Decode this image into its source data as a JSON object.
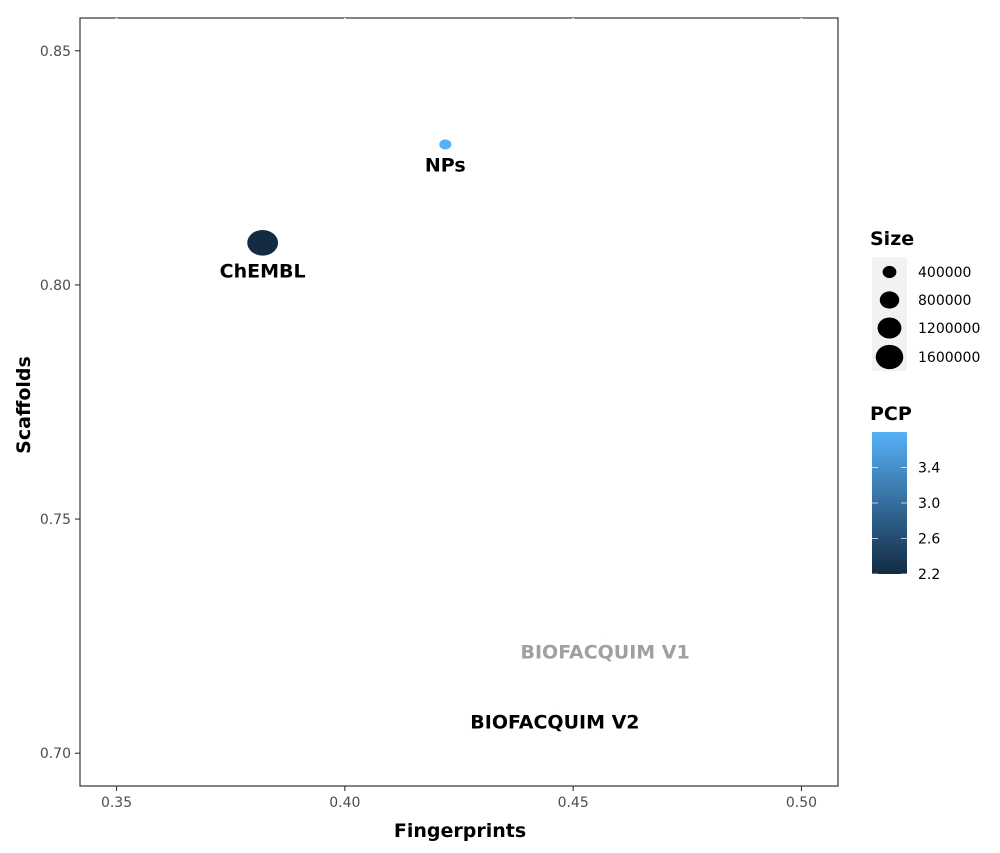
{
  "chart_data": {
    "type": "scatter",
    "xlabel": "Fingerprints",
    "ylabel": "Scaffolds",
    "xlim": [
      0.342,
      0.508
    ],
    "ylim": [
      0.693,
      0.857
    ],
    "x_ticks": [
      "0.35",
      "0.40",
      "0.45",
      "0.50"
    ],
    "y_ticks": [
      "0.70",
      "0.75",
      "0.80",
      "0.85"
    ],
    "grid": false,
    "points": [
      {
        "label": "NPs",
        "x": 0.422,
        "y": 0.83,
        "size": 270000,
        "pcp": 3.7,
        "color": "#56b1f7",
        "label_color": "#000000"
      },
      {
        "label": "ChEMBL",
        "x": 0.382,
        "y": 0.809,
        "size": 1750000,
        "pcp": 2.2,
        "color": "#132b43",
        "label_color": "#000000"
      },
      {
        "label": "BIOFACQUIM V1",
        "x": 0.457,
        "y": 0.725,
        "size": 400,
        "pcp": 3.6,
        "color": "#4da3e8",
        "label_color": "#a0a0a0"
      },
      {
        "label": "BIOFACQUIM V2",
        "x": 0.446,
        "y": 0.71,
        "size": 530,
        "pcp": 3.2,
        "color": "#3b7cbc",
        "label_color": "#000000"
      }
    ],
    "legend": {
      "placement": "right",
      "size": {
        "title": "Size",
        "entries": [
          {
            "label": "400000",
            "value": 400000
          },
          {
            "label": "800000",
            "value": 800000
          },
          {
            "label": "1200000",
            "value": 1200000
          },
          {
            "label": "1600000",
            "value": 1600000
          }
        ]
      },
      "color": {
        "title": "PCP",
        "range": [
          2.2,
          3.8
        ],
        "low_color": "#132b43",
        "high_color": "#56b1f7",
        "ticks": [
          {
            "label": "3.4",
            "value": 3.4
          },
          {
            "label": "3.0",
            "value": 3.0
          },
          {
            "label": "2.6",
            "value": 2.6
          },
          {
            "label": "2.2",
            "value": 2.2
          }
        ]
      }
    }
  }
}
